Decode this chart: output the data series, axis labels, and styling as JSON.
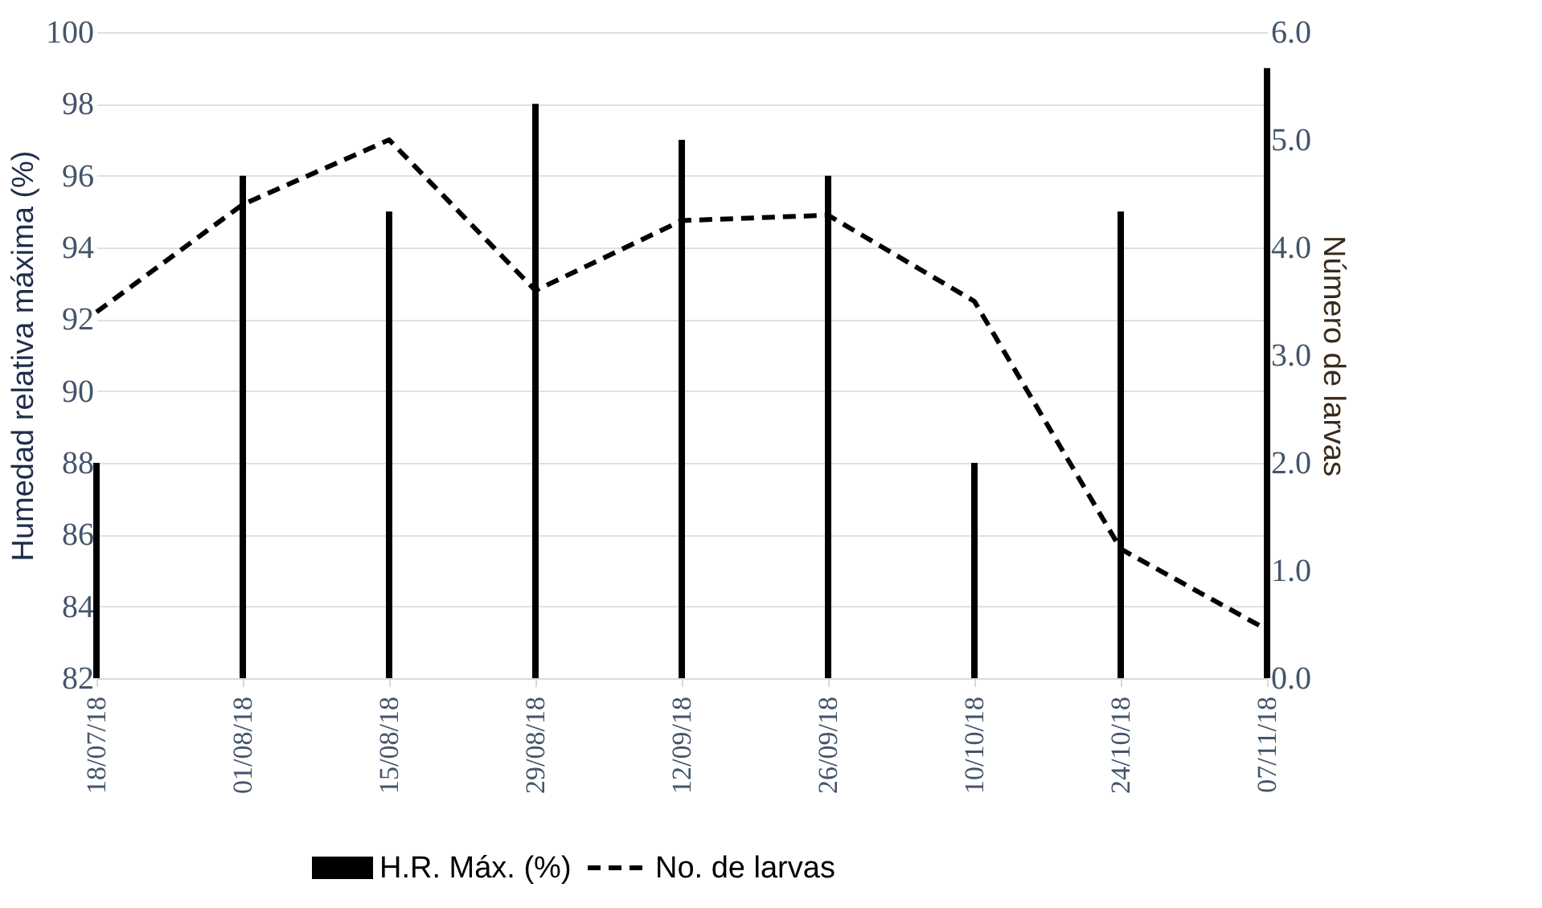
{
  "chart_data": {
    "type": "bar",
    "ylabel": "Humedad relativa máxima (%)",
    "y2label": "Número de larvas",
    "categories": [
      "18/07/18",
      "01/08/18",
      "15/08/18",
      "29/08/18",
      "12/09/18",
      "26/09/18",
      "10/10/18",
      "24/10/18",
      "07/11/18"
    ],
    "series": [
      {
        "name": "H.R. Máx. (%)",
        "color": "#000000",
        "values": [
          88,
          96,
          95,
          98,
          97,
          96,
          88,
          95,
          99
        ]
      },
      {
        "name": "No. de larvas",
        "type": "line",
        "axis": "y2",
        "color": "#000000",
        "line_style": "dashed",
        "values": [
          3.4,
          4.4,
          5.0,
          3.6,
          4.25,
          4.3,
          3.5,
          1.2,
          0.45
        ]
      }
    ],
    "ylim": [
      82,
      100
    ],
    "yticks": [
      82,
      84,
      86,
      88,
      90,
      92,
      94,
      96,
      98,
      100
    ],
    "y2lim": [
      0,
      6
    ],
    "y2ticks": [
      {
        "value": 0,
        "label": "0.0"
      },
      {
        "value": 1,
        "label": "1.0"
      },
      {
        "value": 2,
        "label": "2.0"
      },
      {
        "value": 3,
        "label": "3.0"
      },
      {
        "value": 4,
        "label": "4.0"
      },
      {
        "value": 5,
        "label": "5.0"
      },
      {
        "value": 6,
        "label": "6.0"
      }
    ],
    "grid": "y",
    "legend": "bottom"
  }
}
